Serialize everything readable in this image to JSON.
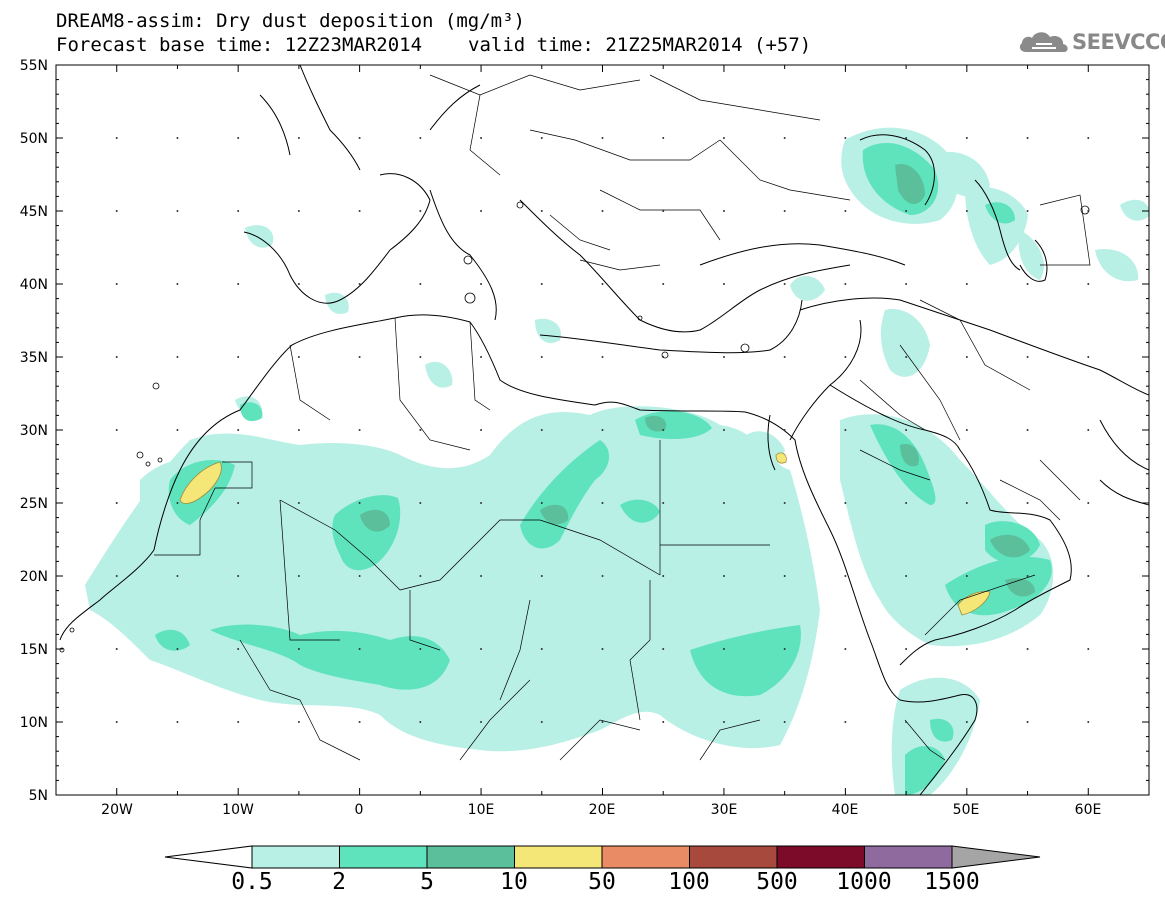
{
  "header": {
    "title_line1": "DREAM8-assim: Dry dust deposition (mg/m³)",
    "forecast_base": "Forecast base time: 12Z23MAR2014",
    "valid_time": "valid time: 21Z25MAR2014 (+57)"
  },
  "logo": {
    "text": "SEEVCCC",
    "icon": "cloud-icon",
    "color": "#888888"
  },
  "map": {
    "lon_range": [
      -25,
      65
    ],
    "lat_range": [
      5,
      55
    ],
    "lat_ticks": [
      "55N",
      "50N",
      "45N",
      "40N",
      "35N",
      "30N",
      "25N",
      "20N",
      "15N",
      "10N",
      "5N"
    ],
    "lon_ticks": [
      "20W",
      "10W",
      "0",
      "10E",
      "20E",
      "30E",
      "40E",
      "50E",
      "60E"
    ]
  },
  "colorbar": {
    "labels": [
      "0.5",
      "2",
      "5",
      "10",
      "50",
      "100",
      "500",
      "1000",
      "1500"
    ],
    "colors": [
      "#b9f0e6",
      "#5fe3bd",
      "#5cbf9b",
      "#f4e778",
      "#e98b65",
      "#a8493d",
      "#7c0b2a",
      "#8f6a9f",
      "#a5a5a5"
    ]
  }
}
